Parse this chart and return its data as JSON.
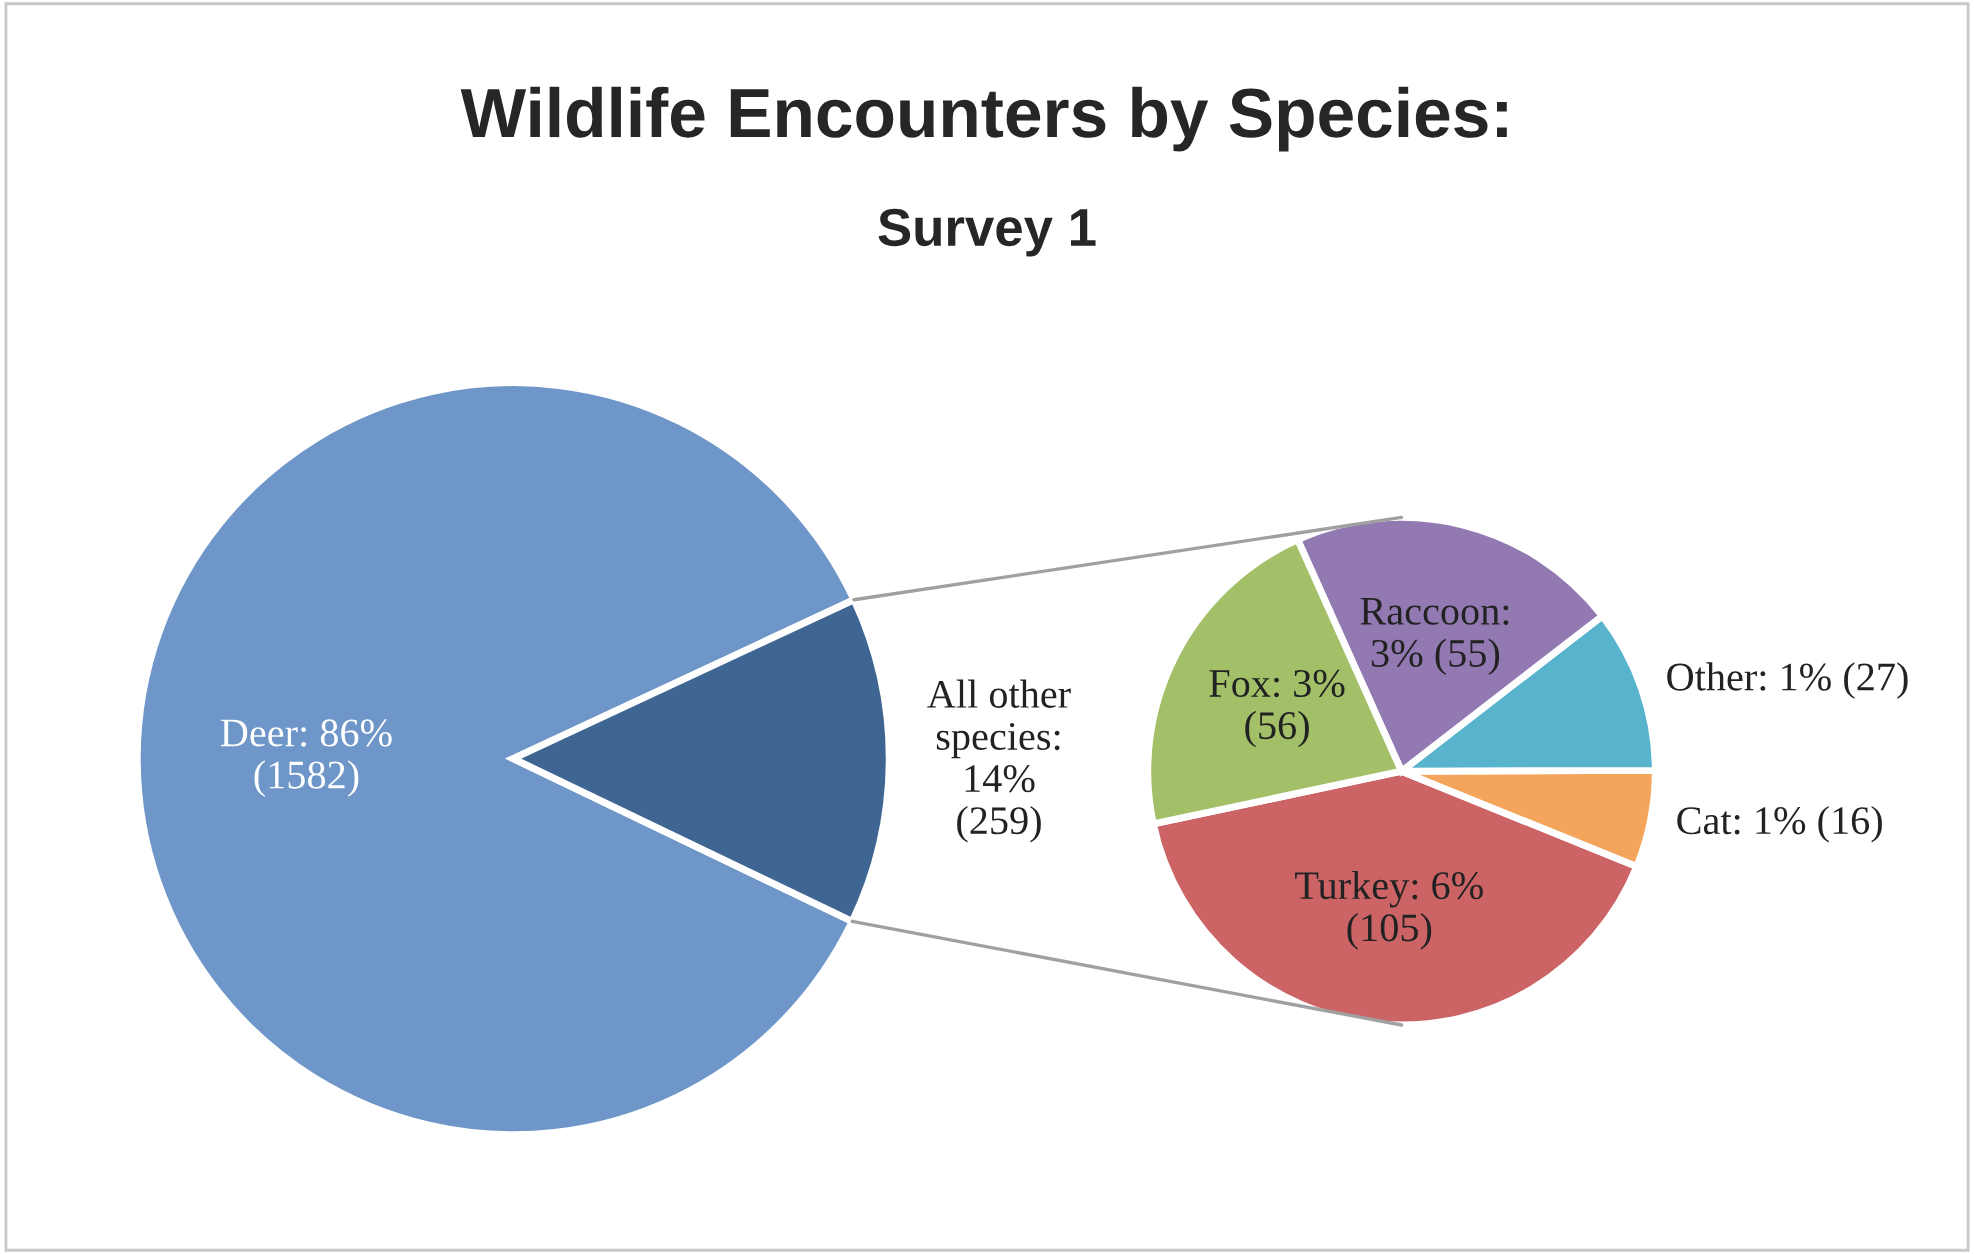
{
  "chart_data": [
    {
      "type": "pie",
      "title": "Wildlife Encounters by Species:",
      "subtitle": "Survey 1",
      "categories": [
        "Deer",
        "All other species"
      ],
      "values": [
        1582,
        259
      ],
      "colors": [
        "#6f96c8",
        "#3f6593"
      ],
      "value_labels": [
        ": 86%\n(1582)",
        ":\n14%\n(259)"
      ]
    },
    {
      "type": "pie",
      "categories": [
        "Turkey",
        "Cat",
        "Other",
        "Raccoon",
        "Fox"
      ],
      "values": [
        105,
        16,
        27,
        55,
        56
      ],
      "colors": [
        "#cc6466",
        "#f5a45c",
        "#58b3cc",
        "#9279b2",
        "#a3c068"
      ],
      "value_labels": [
        ": 6%\n(105)",
        ": 1% (16)",
        ": 1% (27)",
        ":\n3% (55)",
        ": 3%\n(56)"
      ]
    }
  ]
}
